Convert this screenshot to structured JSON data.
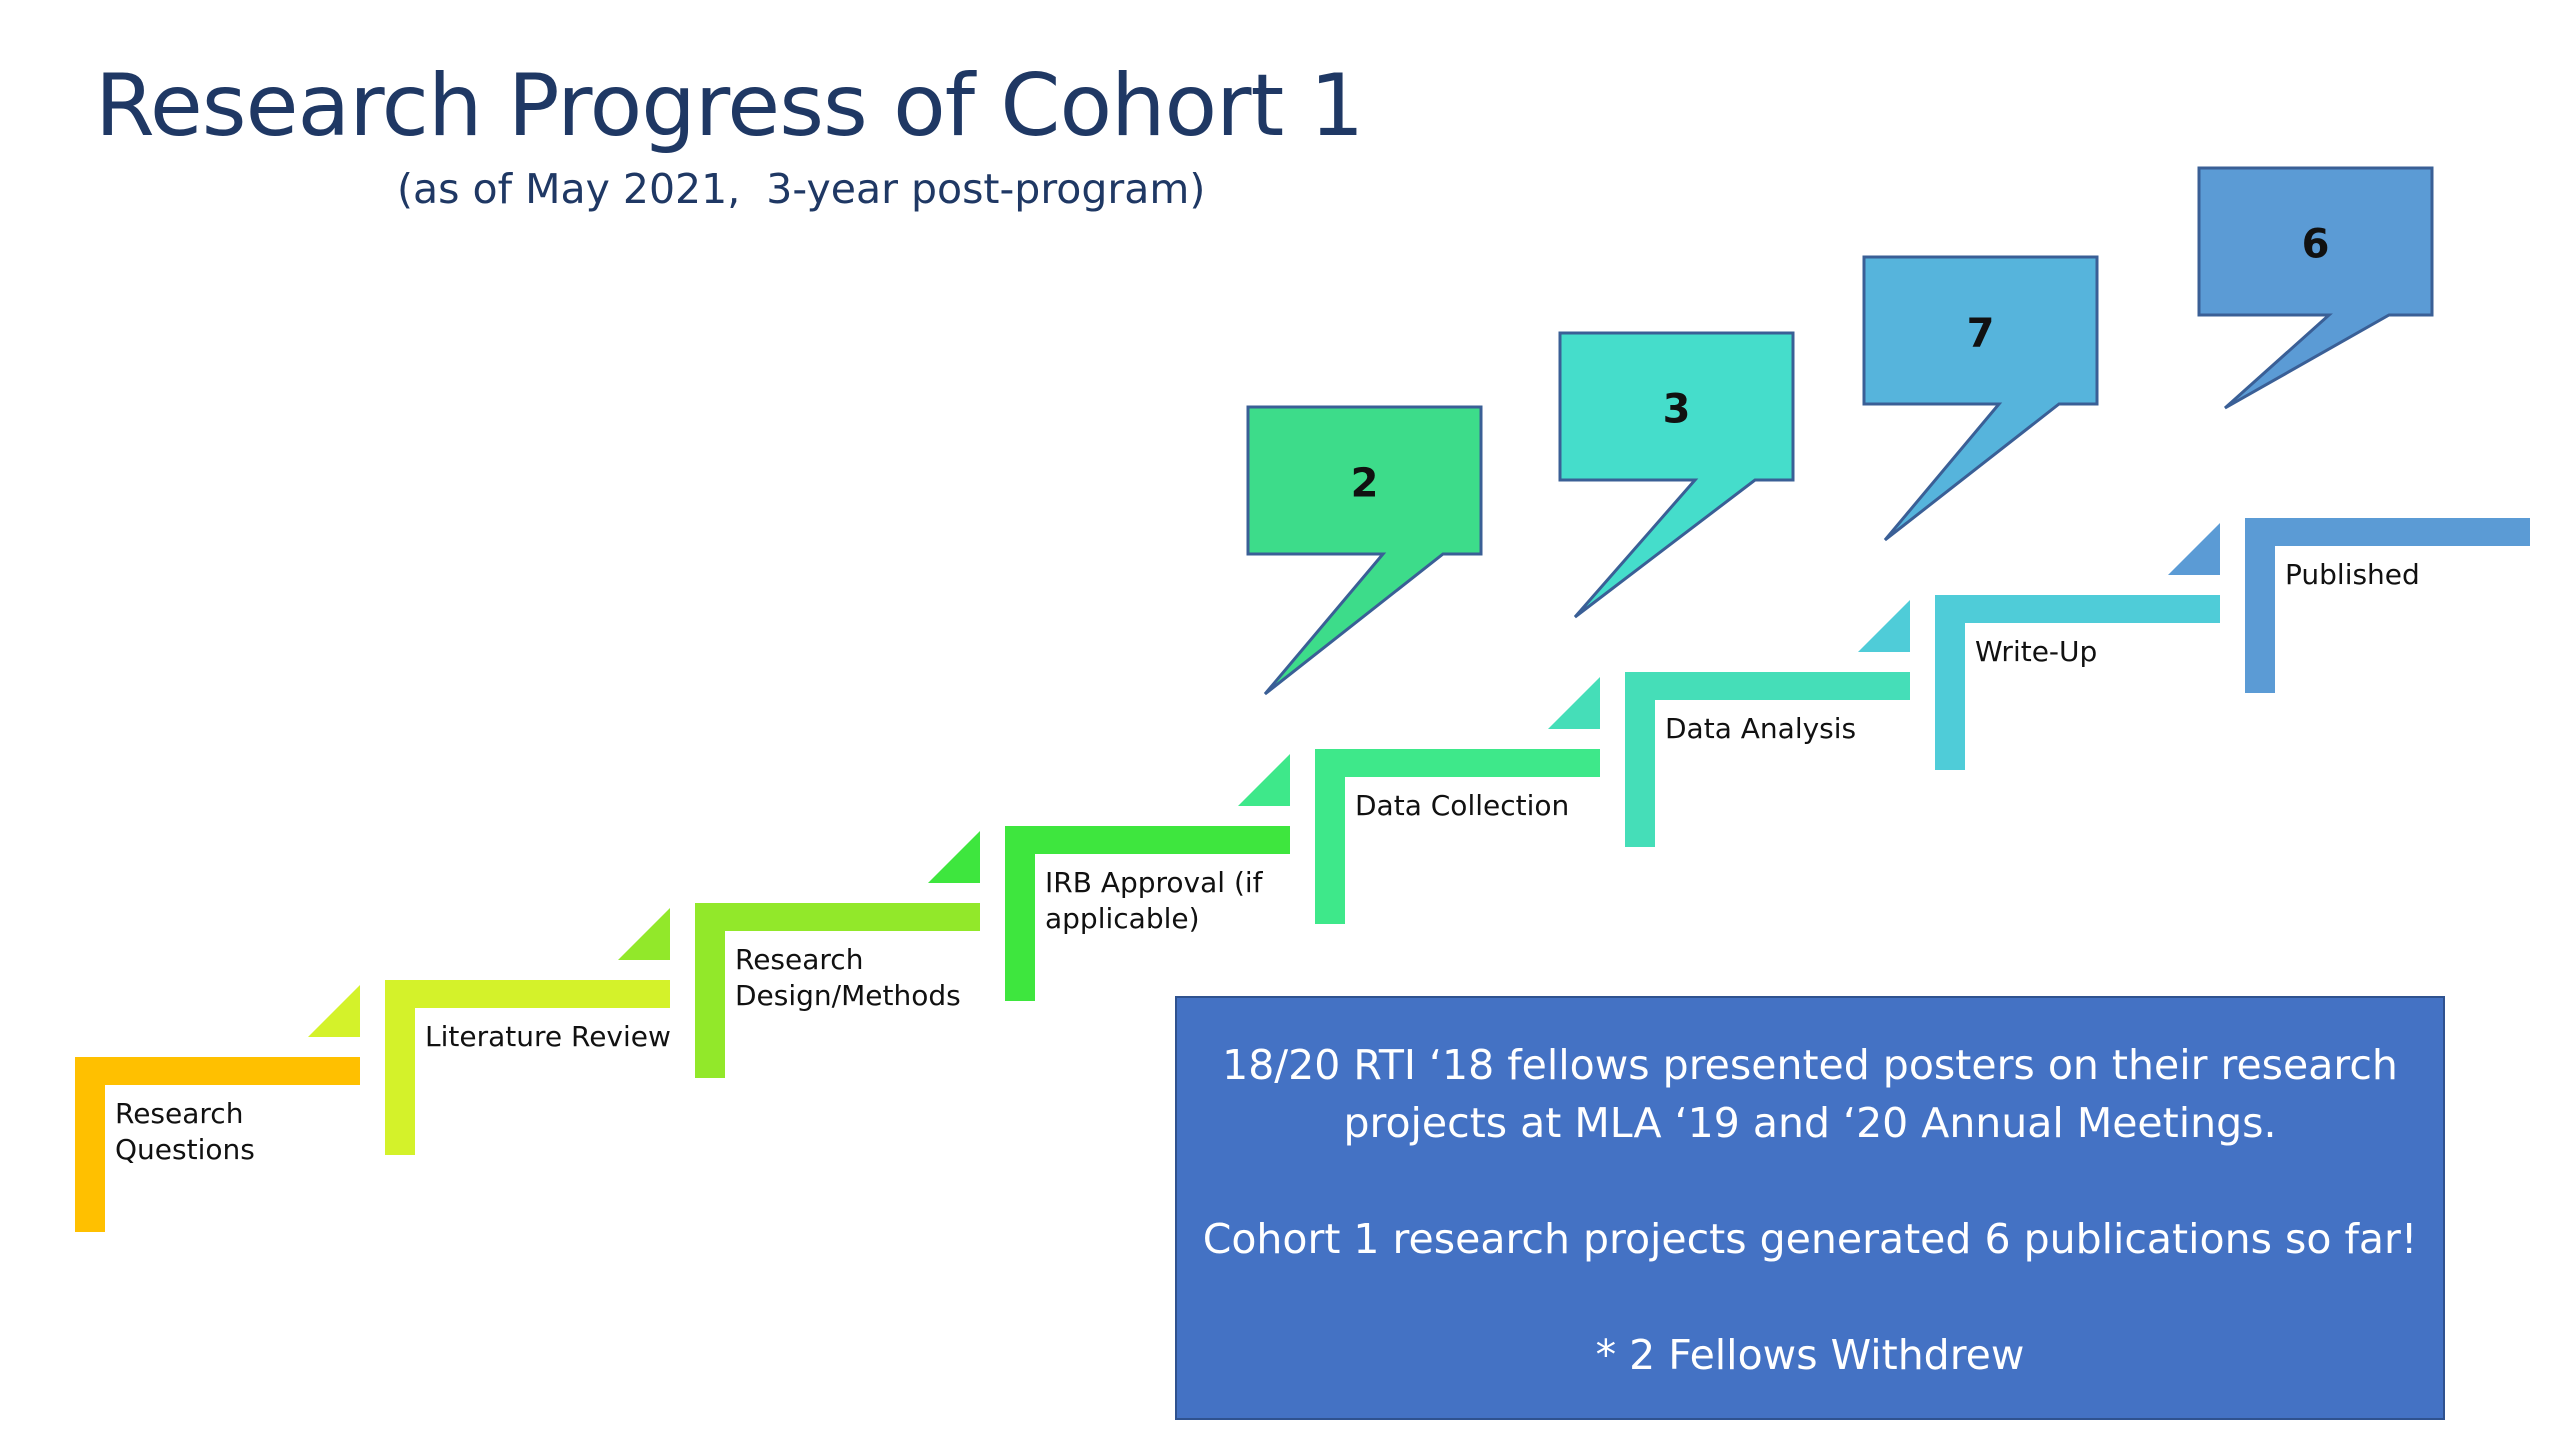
{
  "slide": {
    "title": "Research Progress of Cohort 1",
    "subtitle": "(as of May 2021,  3-year post-program)"
  },
  "steps": [
    {
      "label_lines": [
        "Research",
        "Questions"
      ],
      "color": "#ffc000"
    },
    {
      "label_lines": [
        "Literature Review"
      ],
      "color": "#d4f22a"
    },
    {
      "label_lines": [
        "Research",
        "Design/Methods"
      ],
      "color": "#92e82a"
    },
    {
      "label_lines": [
        "IRB Approval (if",
        "applicable)"
      ],
      "color": "#3ee63e"
    },
    {
      "label_lines": [
        "Data Collection"
      ],
      "color": "#3ee88a"
    },
    {
      "label_lines": [
        "Data Analysis"
      ],
      "color": "#45deb8"
    },
    {
      "label_lines": [
        "Write-Up"
      ],
      "color": "#4fccd8"
    },
    {
      "label_lines": [
        "Published"
      ],
      "color": "#5b9bd5"
    }
  ],
  "callouts": [
    {
      "value": "2",
      "step": "Data Collection",
      "color": "#3ddc8a"
    },
    {
      "value": "3",
      "step": "Data Analysis",
      "color": "#45ddcb"
    },
    {
      "value": "7",
      "step": "Write-Up",
      "color": "#56b4dc"
    },
    {
      "value": "6",
      "step": "Published",
      "color": "#5b9bd5"
    }
  ],
  "summary": {
    "line1": "18/20 RTI ‘18 fellows presented posters on their research projects at MLA ‘19 and ‘20 Annual Meetings.",
    "line2": "Cohort 1 research projects generated 6 publications so far!",
    "line3": "* 2 Fellows Withdrew"
  }
}
